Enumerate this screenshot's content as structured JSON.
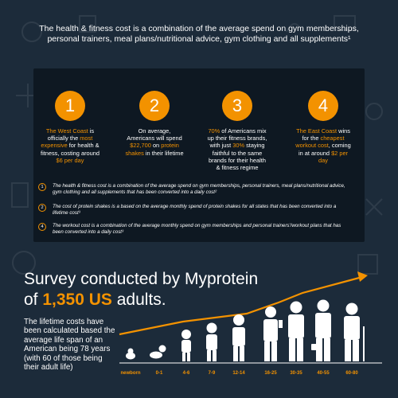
{
  "intro_text": "The health & fitness cost is a combination of the average spend on gym memberships, personal trainers, meal plans/nutritional advice, gym clothing and all supplements¹",
  "stats": [
    {
      "number": "1",
      "parts": [
        "The West Coast",
        " is officially the ",
        "most expensive",
        " for health & fitness, costing around ",
        "$6 per day"
      ]
    },
    {
      "number": "2",
      "parts": [
        "On average, Americans will spend ",
        "$22,700",
        " on ",
        "protein shakes",
        " in their lifetime"
      ]
    },
    {
      "number": "3",
      "parts": [
        "70%",
        " of Americans mix up their fitness brands, with just ",
        "30%",
        " staying faithful to the same brands for their health & fitness regime"
      ]
    },
    {
      "number": "4",
      "parts": [
        "The East Coast",
        " wins for the ",
        "cheapest workout cost",
        ", coming in at around ",
        "$2 per day"
      ]
    }
  ],
  "notes": [
    {
      "num": "1",
      "text": "The health & fitness cost is a combination of the average spend on gym memberships, personal trainers, meal plans/nutritional advice, gym clothing and all supplements that has been converted into a daily cost²"
    },
    {
      "num": "2",
      "text": "The cost of protein shakes is a based on the average monthly spend of protein shakes for all states that has been converted into a lifetime cost³"
    },
    {
      "num": "4",
      "text": "The workout cost is a combination of the average monthly spend on gym memberships and personal trainers'/workout plans that has been converted into a daily cost³"
    }
  ],
  "survey": {
    "line1": "Survey conducted by Myprotein",
    "line2_prefix": "of ",
    "line2_highlight": "1,350 US",
    "line2_suffix": " adults."
  },
  "lifetime_text": "The lifetime costs have been calculated based the average life span of an American being 78 years (with 60 of those being their adult life)",
  "age_labels": [
    "newborn",
    "0-1",
    "4-6",
    "7-9",
    "12-14",
    "16-25",
    "30-35",
    "40-55",
    "60-80"
  ],
  "colors": {
    "accent": "#f39200",
    "background": "#1c2b3a",
    "panel": "#0e1822"
  }
}
